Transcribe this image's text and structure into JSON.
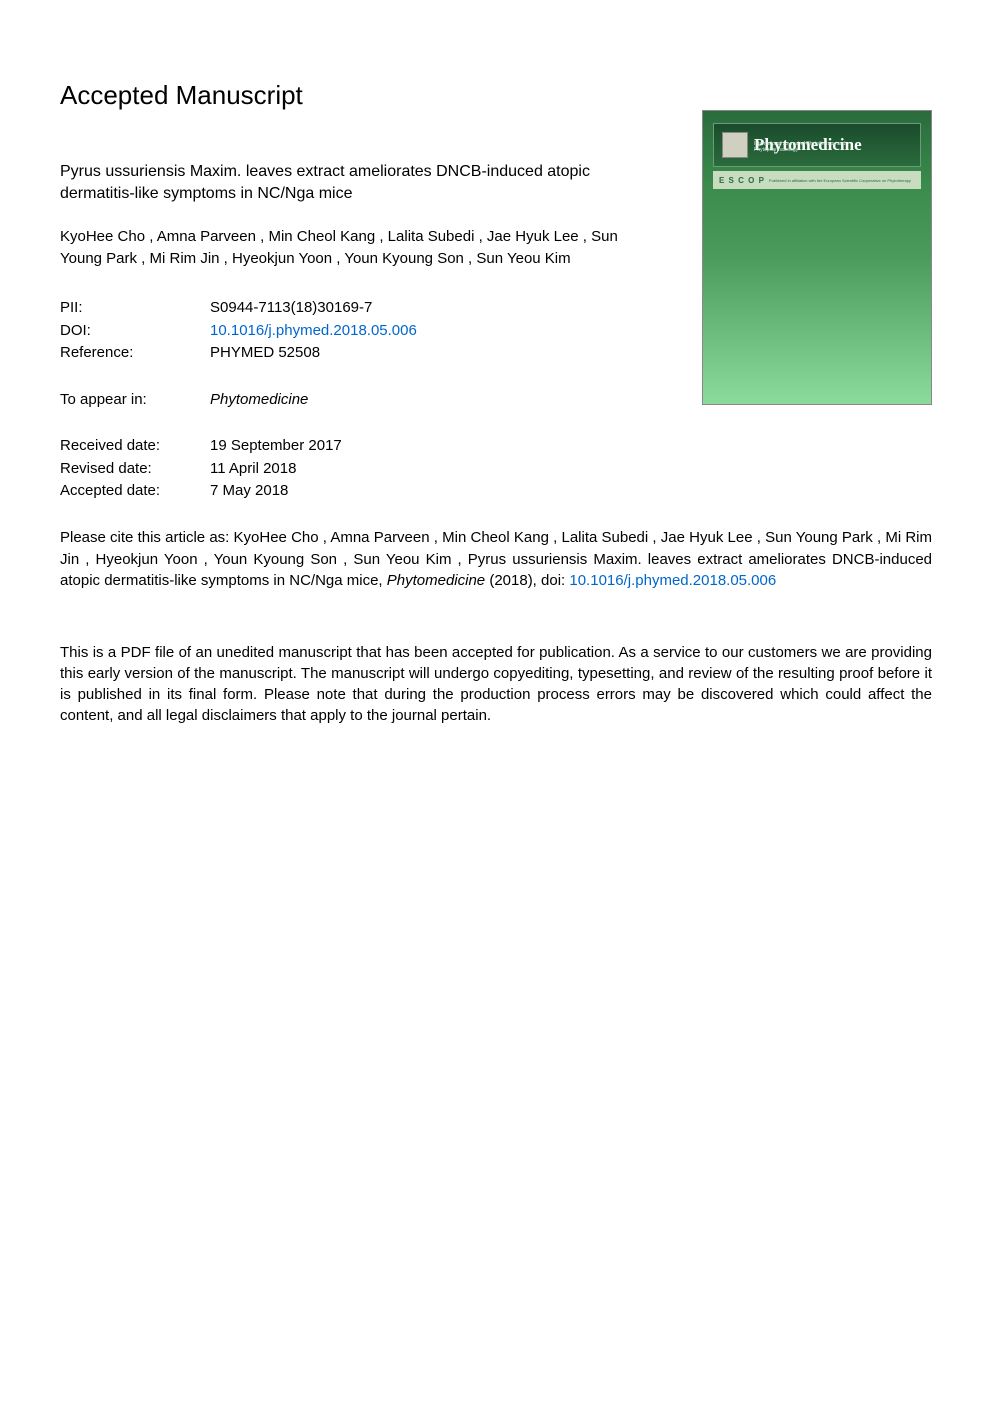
{
  "header": {
    "section_title": "Accepted Manuscript"
  },
  "article": {
    "title": "Pyrus ussuriensis Maxim. leaves extract ameliorates DNCB-induced atopic dermatitis-like symptoms in NC/Nga mice",
    "authors": "KyoHee Cho ,  Amna Parveen ,  Min Cheol Kang ,  Lalita Subedi ,  Jae Hyuk Lee ,  Sun Young Park ,  Mi Rim Jin ,  Hyeokjun Yoon ,  Youn Kyoung Son ,  Sun Yeou Kim"
  },
  "meta": {
    "pii_label": "PII:",
    "pii_value": "S0944-7113(18)30169-7",
    "doi_label": "DOI:",
    "doi_value": "10.1016/j.phymed.2018.05.006",
    "reference_label": "Reference:",
    "reference_value": "PHYMED 52508",
    "appear_label": "To appear in:",
    "appear_value": "Phytomedicine",
    "received_label": "Received date:",
    "received_value": "19 September 2017",
    "revised_label": "Revised date:",
    "revised_value": "11 April 2018",
    "accepted_label": "Accepted date:",
    "accepted_value": "7 May 2018"
  },
  "citation": {
    "prefix": "Please cite this article as: KyoHee Cho ,  Amna Parveen ,  Min Cheol Kang ,  Lalita Subedi ,  Jae Hyuk Lee ,  Sun Young Park ,  Mi Rim Jin ,  Hyeokjun Yoon ,  Youn Kyoung Son ,  Sun Yeou Kim , Pyrus ussuriensis Maxim. leaves extract ameliorates DNCB-induced atopic dermatitis-like symptoms in NC/Nga mice, ",
    "journal": "Phytomedicine",
    "year": " (2018), doi: ",
    "doi_link": "10.1016/j.phymed.2018.05.006"
  },
  "disclaimer": {
    "text": "This is a PDF file of an unedited manuscript that has been accepted for publication. As a service to our customers we are providing this early version of the manuscript. The manuscript will undergo copyediting, typesetting, and review of the resulting proof before it is published in its final form. Please note that during the production process errors may be discovered which could affect the content, and all legal disclaimers that apply to the journal pertain."
  },
  "cover": {
    "journal_name": "Phytomedicine",
    "subtitle": "International Journal of Phytotherapy and Phytopharmacology",
    "escop": "E S C O P",
    "escop_sub": "Published in affiliation with the European Scientific Cooperative on Phytotherapy",
    "colors": {
      "gradient_top": "#2a6b3c",
      "gradient_bottom": "#8adb9c",
      "escop_bg": "#c8dcc0"
    }
  },
  "colors": {
    "link": "#0066cc",
    "text": "#000000",
    "background": "#ffffff"
  }
}
